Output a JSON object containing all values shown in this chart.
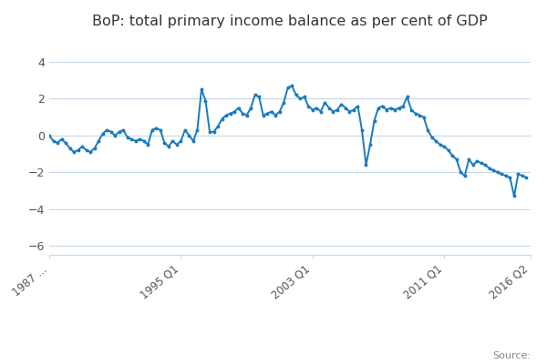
{
  "title": "BoP: total primary income balance as per cent of GDP",
  "legend_label": "BoP: total primary income balance as per cent of GDP",
  "source_text": "Source:",
  "line_color": "#1a7abf",
  "marker": "o",
  "markersize": 1.8,
  "linewidth": 1.4,
  "ylim": [
    -6.5,
    4.8
  ],
  "yticks": [
    -6,
    -4,
    -2,
    0,
    2,
    4
  ],
  "xtick_labels": [
    "1987 ...",
    "1995 Q1",
    "2003 Q1",
    "2011 Q1",
    "2016 Q2"
  ],
  "xtick_positions": [
    0,
    32,
    64,
    96,
    117
  ],
  "background_color": "#ffffff",
  "grid_color": "#c8d8e8",
  "title_fontsize": 11.5,
  "legend_fontsize": 9,
  "values": [
    0.0,
    -0.3,
    -0.4,
    -0.2,
    -0.4,
    -0.7,
    -0.9,
    -0.8,
    -0.6,
    -0.8,
    -0.9,
    -0.7,
    -0.3,
    0.1,
    0.3,
    0.2,
    0.0,
    0.2,
    0.3,
    -0.1,
    -0.2,
    -0.3,
    -0.2,
    -0.3,
    -0.5,
    0.3,
    0.4,
    0.3,
    -0.4,
    -0.6,
    -0.3,
    -0.5,
    -0.3,
    0.3,
    0.0,
    -0.3,
    0.3,
    2.5,
    1.9,
    0.2,
    0.2,
    0.5,
    0.9,
    1.1,
    1.2,
    1.3,
    1.5,
    1.2,
    1.1,
    1.5,
    2.2,
    2.1,
    1.1,
    1.2,
    1.3,
    1.1,
    1.3,
    1.8,
    2.6,
    2.7,
    2.2,
    2.0,
    2.1,
    1.6,
    1.4,
    1.5,
    1.3,
    1.8,
    1.5,
    1.3,
    1.4,
    1.7,
    1.5,
    1.3,
    1.4,
    1.6,
    0.3,
    -1.6,
    -0.5,
    0.8,
    1.5,
    1.6,
    1.4,
    1.5,
    1.4,
    1.5,
    1.6,
    2.1,
    1.4,
    1.2,
    1.1,
    1.0,
    0.3,
    -0.1,
    -0.3,
    -0.5,
    -0.6,
    -0.8,
    -1.1,
    -1.3,
    -2.0,
    -2.2,
    -1.3,
    -1.6,
    -1.4,
    -1.5,
    -1.6,
    -1.8,
    -1.9,
    -2.0,
    -2.1,
    -2.2,
    -2.3,
    -3.3,
    -2.1,
    -2.2,
    -2.3
  ]
}
